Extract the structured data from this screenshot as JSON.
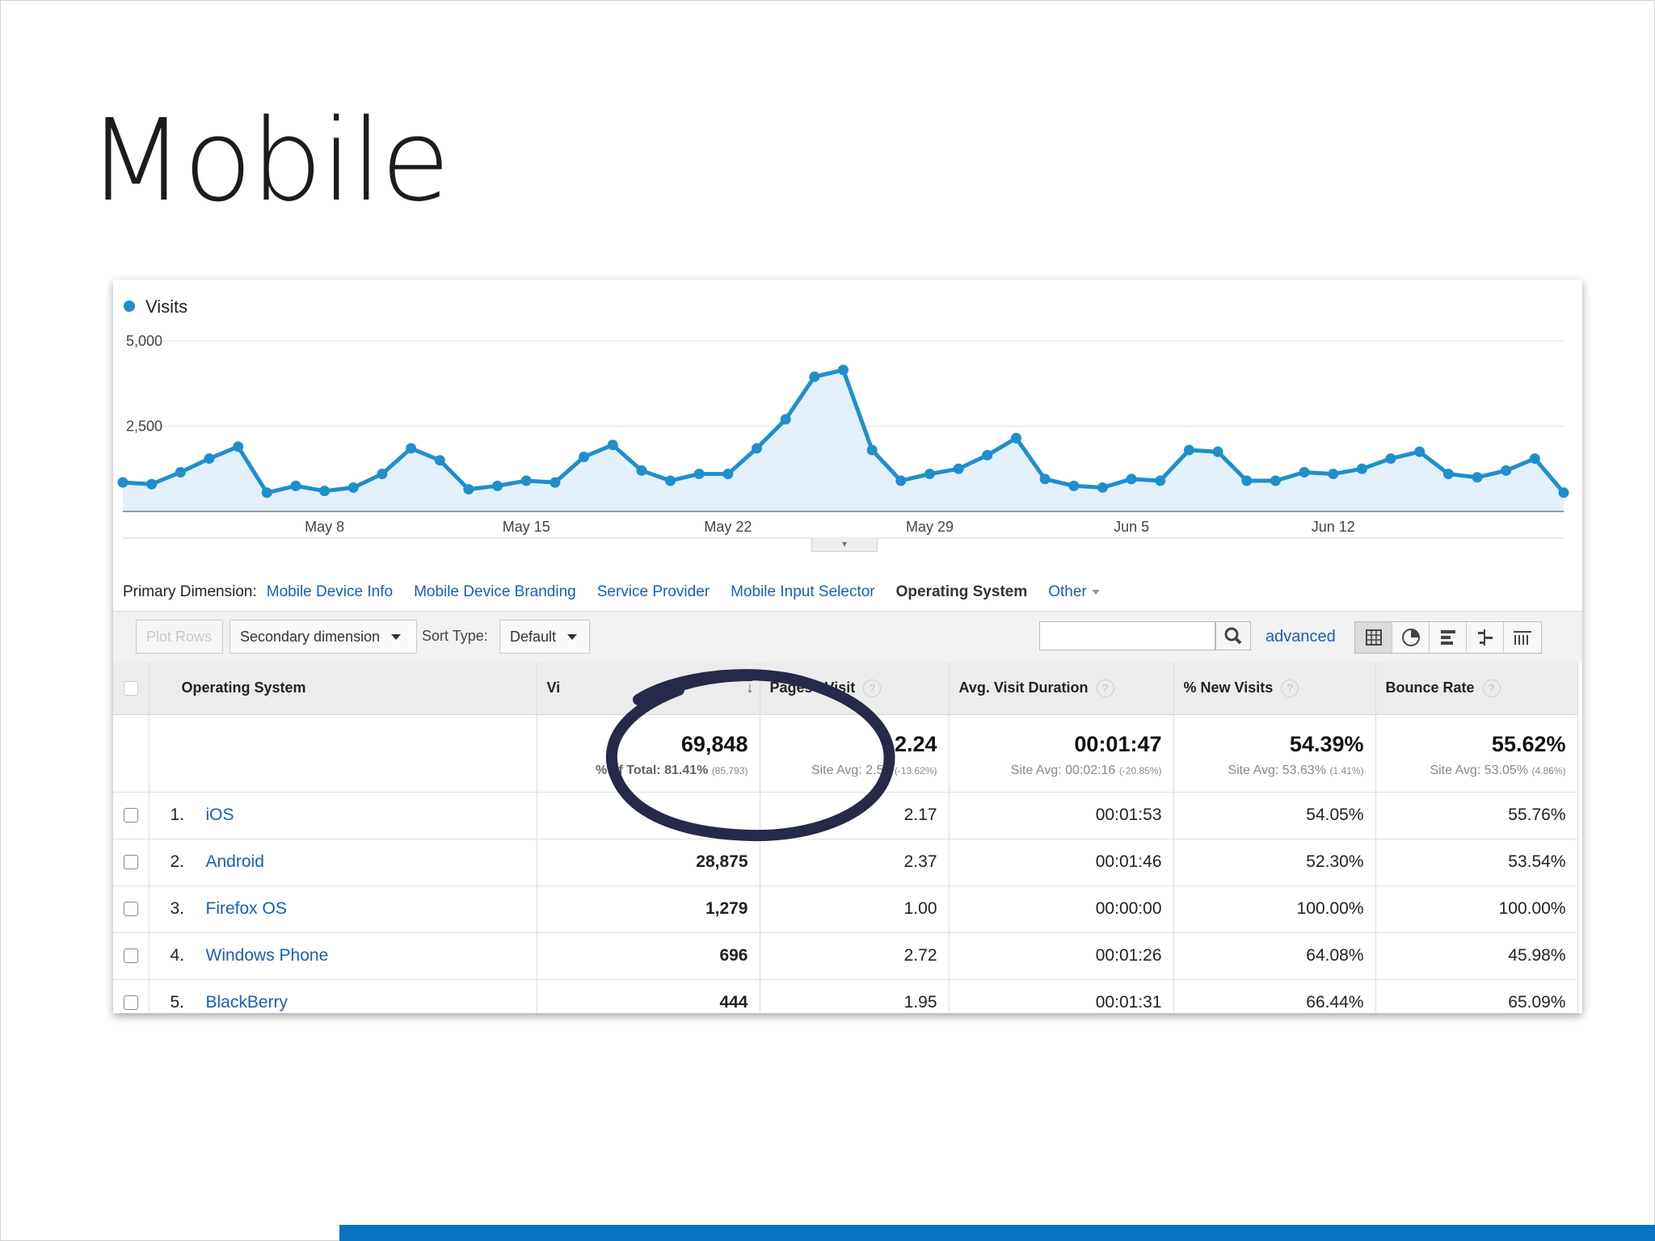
{
  "slide": {
    "title": "Mobile"
  },
  "colors": {
    "accent_bar": "#0a74c2",
    "series": "#1f8fcc",
    "link": "#1a5fb4",
    "annotation": "#262a48"
  },
  "chart_data": {
    "type": "area",
    "legend": [
      "Visits"
    ],
    "series": [
      {
        "name": "Visits",
        "values": [
          850,
          800,
          1150,
          1550,
          1900,
          550,
          750,
          600,
          700,
          1100,
          1850,
          1500,
          650,
          750,
          900,
          850,
          1600,
          1950,
          1200,
          900,
          1100,
          1100,
          1850,
          2700,
          3950,
          4150,
          1800,
          900,
          1100,
          1250,
          1650,
          2150,
          950,
          750,
          700,
          950,
          900,
          1800,
          1750,
          900,
          900,
          1150,
          1100,
          1250,
          1550,
          1750,
          1100,
          1000,
          1200,
          1550,
          550
        ]
      }
    ],
    "x_ticks": [
      "May 8",
      "May 15",
      "May 22",
      "May 29",
      "Jun 5",
      "Jun 12"
    ],
    "y_ticks": [
      "5,000",
      "2,500"
    ],
    "ylim": [
      0,
      5000
    ],
    "grid": true
  },
  "dimensions": {
    "label": "Primary Dimension:",
    "links": [
      "Mobile Device Info",
      "Mobile Device Branding",
      "Service Provider",
      "Mobile Input Selector"
    ],
    "active": "Operating System",
    "other": "Other"
  },
  "toolbar": {
    "plot_rows": "Plot Rows",
    "secondary": "Secondary dimension",
    "sort_label": "Sort Type:",
    "sort_value": "Default",
    "search_value": "",
    "advanced": "advanced",
    "view_icons": [
      "table-view-icon",
      "pie-view-icon",
      "performance-view-icon",
      "comparison-view-icon",
      "pivot-view-icon"
    ]
  },
  "table": {
    "headers": [
      "Operating System",
      "Vi",
      "Pages / Visit",
      "Avg. Visit Duration",
      "% New Visits",
      "Bounce Rate"
    ],
    "totals": {
      "visits": "69,848",
      "visits_sub": "% of Total: 81.41%",
      "visits_sub_small": "(85,793)",
      "pages": "2.24",
      "pages_sub": "Site Avg: 2.59",
      "pages_sub_small": "(-13.62%)",
      "duration": "00:01:47",
      "duration_sub": "Site Avg: 00:02:16",
      "duration_sub_small": "(-20.85%)",
      "new": "54.39%",
      "new_sub": "Site Avg: 53.63%",
      "new_sub_small": "(1.41%)",
      "bounce": "55.62%",
      "bounce_sub": "Site Avg: 53.05%",
      "bounce_sub_small": "(4.86%)"
    },
    "rows": [
      {
        "num": "1.",
        "name": "iOS",
        "visits": "",
        "pages": "2.17",
        "duration": "00:01:53",
        "new": "54.05%",
        "bounce": "55.76%"
      },
      {
        "num": "2.",
        "name": "Android",
        "visits": "28,875",
        "pages": "2.37",
        "duration": "00:01:46",
        "new": "52.30%",
        "bounce": "53.54%"
      },
      {
        "num": "3.",
        "name": "Firefox OS",
        "visits": "1,279",
        "pages": "1.00",
        "duration": "00:00:00",
        "new": "100.00%",
        "bounce": "100.00%"
      },
      {
        "num": "4.",
        "name": "Windows Phone",
        "visits": "696",
        "pages": "2.72",
        "duration": "00:01:26",
        "new": "64.08%",
        "bounce": "45.98%"
      },
      {
        "num": "5.",
        "name": "BlackBerry",
        "visits": "444",
        "pages": "1.95",
        "duration": "00:01:31",
        "new": "66.44%",
        "bounce": "65.09%"
      }
    ]
  }
}
